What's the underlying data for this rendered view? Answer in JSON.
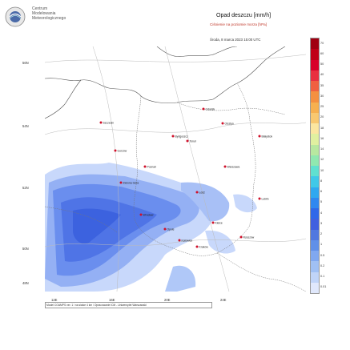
{
  "organization": {
    "line1": "Centrum",
    "line2": "Modelowania",
    "line3": "Meteorologicznego"
  },
  "title": "Opad deszczu [mm/h]",
  "subtitle": "Ciśnienie na poziomie morza [hPa]",
  "datetime": "Środa, 8 marca 2023 15:00 UTC",
  "footer": "Model COAMPS ver. 1 / na siatce 4 km / Opracowanie ICM - Uniwersytet Warszawski",
  "latitude_labels": [
    "56N",
    "54N",
    "52N",
    "50N",
    "48N"
  ],
  "longitude_labels": [
    "12E",
    "16E",
    "20E",
    "24E"
  ],
  "legend": {
    "labels": [
      "70",
      "60",
      "50",
      "40",
      "35",
      "30",
      "25",
      "20",
      "18",
      "16",
      "14",
      "12",
      "10",
      "8",
      "6",
      "5",
      "4",
      "3",
      "2",
      "1",
      "0.5",
      "0.2",
      "0.1",
      "0.01"
    ],
    "colors": [
      "#a00012",
      "#c00018",
      "#d8002a",
      "#e83040",
      "#f06040",
      "#f49040",
      "#f6b050",
      "#f8c870",
      "#fbe6a0",
      "#e0f0a0",
      "#b8e8a0",
      "#90e8b0",
      "#60e0d0",
      "#40c8e8",
      "#30a8f0",
      "#3088f0",
      "#3068e8",
      "#4060e0",
      "#5078e0",
      "#6090e8",
      "#80a8f0",
      "#a0c0f4",
      "#c0d4f8",
      "#e0e8fc"
    ]
  },
  "cities": [
    "Gdańsk",
    "Olsztyn",
    "Białystok",
    "Bydgoszcz",
    "Toruń",
    "Poznań",
    "Warszawa",
    "Łódź",
    "Lublin",
    "Kielce",
    "Wrocław",
    "Opole",
    "Katowice",
    "Kraków",
    "Rzeszów",
    "Szczecin",
    "Zielona Góra",
    "Gorzów"
  ]
}
